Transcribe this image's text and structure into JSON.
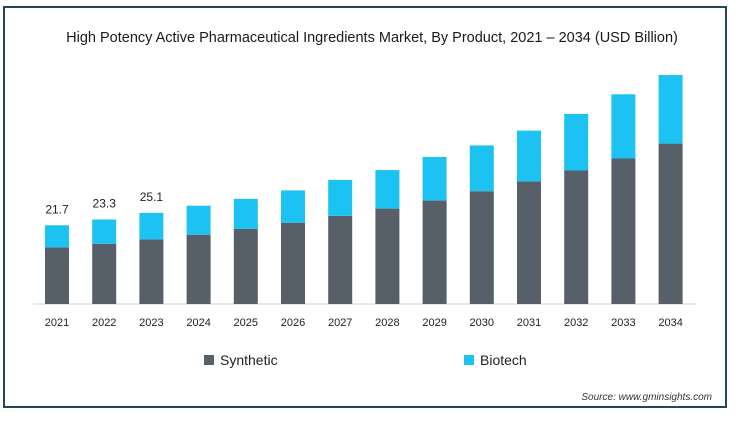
{
  "chart_data": {
    "type": "bar",
    "stacked": true,
    "title": "High Potency Active Pharmaceutical Ingredients Market, By Product, 2021 – 2034 (USD Billion)",
    "xlabel": "",
    "ylabel": "",
    "categories": [
      "2021",
      "2022",
      "2023",
      "2024",
      "2025",
      "2026",
      "2027",
      "2028",
      "2029",
      "2030",
      "2031",
      "2032",
      "2033",
      "2034"
    ],
    "series": [
      {
        "name": "Synthetic",
        "color": "#575f69",
        "values": [
          15.6,
          16.6,
          17.8,
          19.1,
          20.7,
          22.4,
          24.3,
          26.3,
          28.5,
          31.1,
          33.8,
          36.8,
          40.1,
          44.2
        ]
      },
      {
        "name": "Biotech",
        "color": "#1cc2f2",
        "values": [
          6.1,
          6.7,
          7.3,
          8.0,
          8.3,
          8.9,
          9.9,
          10.6,
          12.0,
          12.6,
          14.0,
          15.6,
          17.7,
          18.9
        ]
      }
    ],
    "data_labels": [
      "21.7",
      "23.3",
      "25.1"
    ],
    "ylim": [
      0,
      70
    ],
    "grid": false,
    "legend_position": "bottom"
  },
  "source": "Source: www.gminsights.com"
}
